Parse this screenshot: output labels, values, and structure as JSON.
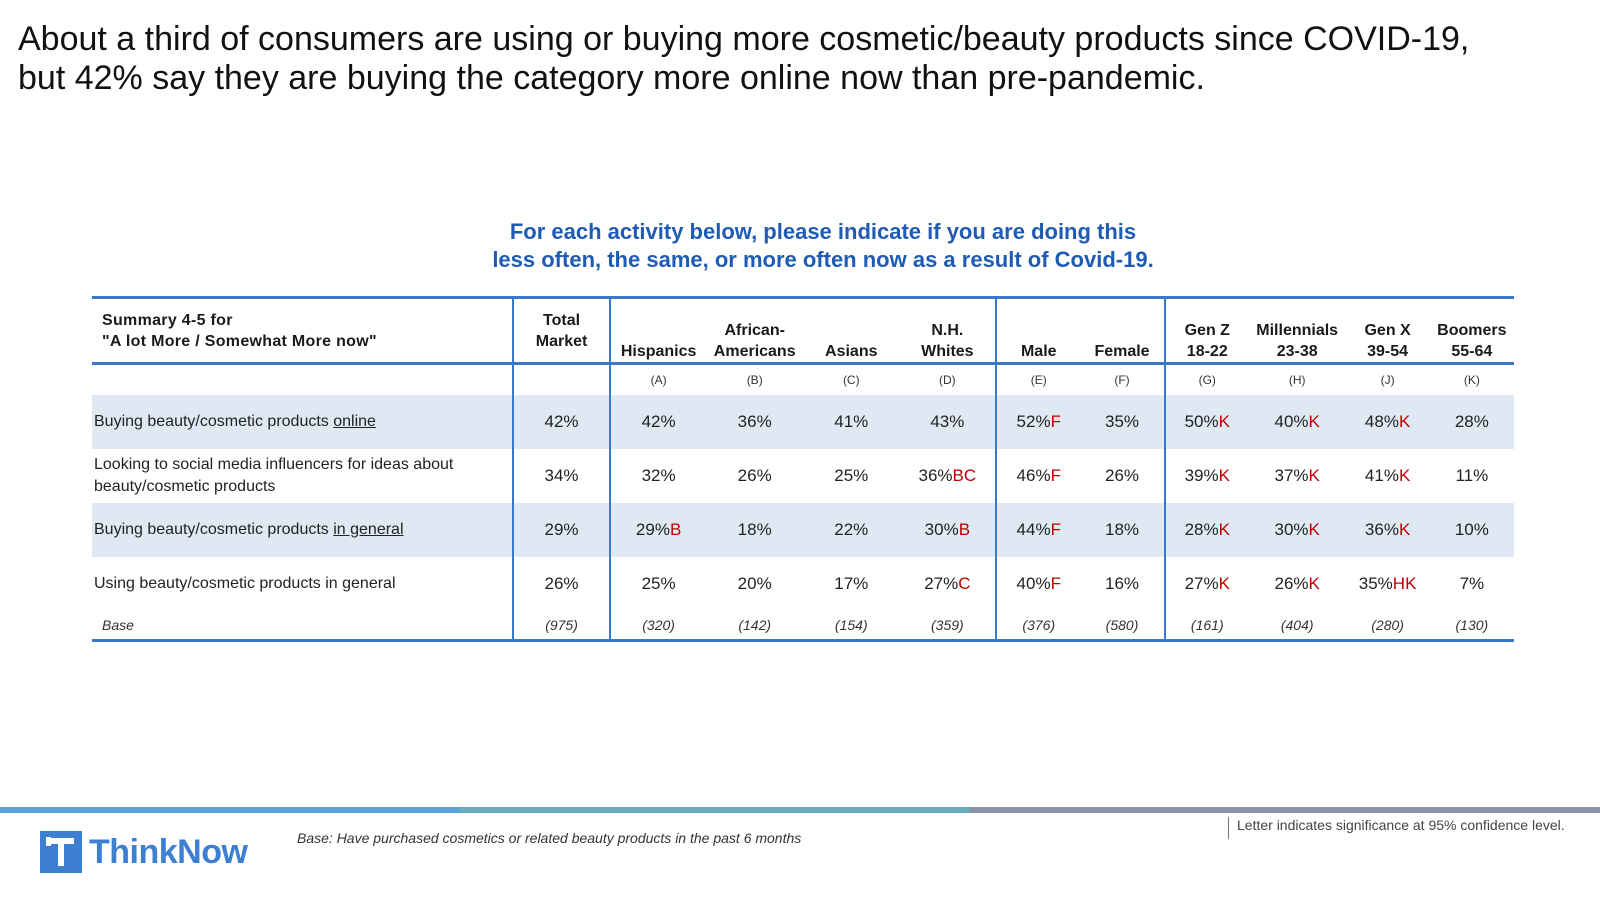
{
  "headline": {
    "line1": "About a third of consumers are using or buying more cosmetic/beauty products since COVID-19,",
    "line2": "but 42% say they are buying the category more online now than pre-pandemic."
  },
  "chart_data": {
    "type": "table",
    "title_line1": "For each activity below, please indicate if you are doing this",
    "title_line2": "less often, the same, or more often now as a result of Covid-19.",
    "row_header": {
      "line1": "Summary 4-5 for",
      "line2": "\"A lot More / Somewhat More now\""
    },
    "columns": [
      {
        "line1": "Total",
        "line2": "Market",
        "letter": ""
      },
      {
        "line1": "",
        "line2": "Hispanics",
        "letter": "(A)"
      },
      {
        "line1": "African-",
        "line2": "Americans",
        "letter": "(B)"
      },
      {
        "line1": "",
        "line2": "Asians",
        "letter": "(C)"
      },
      {
        "line1": "N.H.",
        "line2": "Whites",
        "letter": "(D)"
      },
      {
        "line1": "",
        "line2": "Male",
        "letter": "(E)"
      },
      {
        "line1": "",
        "line2": "Female",
        "letter": "(F)"
      },
      {
        "line1": "Gen Z",
        "line2": "18-22",
        "letter": "(G)"
      },
      {
        "line1": "Millennials",
        "line2": "23-38",
        "letter": "(H)"
      },
      {
        "line1": "Gen X",
        "line2": "39-54",
        "letter": "(J)"
      },
      {
        "line1": "Boomers",
        "line2": "55-64",
        "letter": "(K)"
      }
    ],
    "rows": [
      {
        "label_pre": "Buying beauty/cosmetic products ",
        "label_underline": "online",
        "label_line2": "",
        "values": [
          "42%",
          "42%",
          "36%",
          "41%",
          "43%",
          "52%",
          "35%",
          "50%",
          "40%",
          "48%",
          "28%"
        ],
        "sig": [
          "",
          "",
          "",
          "",
          "",
          "F",
          "",
          "K",
          "K",
          "K",
          ""
        ]
      },
      {
        "label_pre": "Looking to social media influencers for ideas about",
        "label_underline": "",
        "label_line2": "beauty/cosmetic products",
        "values": [
          "34%",
          "32%",
          "26%",
          "25%",
          "36%",
          "46%",
          "26%",
          "39%",
          "37%",
          "41%",
          "11%"
        ],
        "sig": [
          "",
          "",
          "",
          "",
          "BC",
          "F",
          "",
          "K",
          "K",
          "K",
          ""
        ]
      },
      {
        "label_pre": "Buying beauty/cosmetic products ",
        "label_underline": "in general",
        "label_line2": "",
        "values": [
          "29%",
          "29%",
          "18%",
          "22%",
          "30%",
          "44%",
          "18%",
          "28%",
          "30%",
          "36%",
          "10%"
        ],
        "sig": [
          "",
          "B",
          "",
          "",
          "B",
          "F",
          "",
          "K",
          "K",
          "K",
          ""
        ]
      },
      {
        "label_pre": "Using beauty/cosmetic products in general",
        "label_underline": "",
        "label_line2": "",
        "values": [
          "26%",
          "25%",
          "20%",
          "17%",
          "27%",
          "40%",
          "16%",
          "27%",
          "26%",
          "35%",
          "7%"
        ],
        "sig": [
          "",
          "",
          "",
          "",
          "C",
          "F",
          "",
          "K",
          "K",
          "HK",
          ""
        ]
      }
    ],
    "base_label": "Base",
    "base_values": [
      "(975)",
      "(320)",
      "(142)",
      "(154)",
      "(359)",
      "(376)",
      "(580)",
      "(161)",
      "(404)",
      "(280)",
      "(130)"
    ]
  },
  "footer": {
    "logo_text": "ThinkNow",
    "base_note": "Base: Have purchased cosmetics or related beauty products in the past 6 months",
    "sig_note": "Letter indicates significance at 95% confidence level."
  },
  "colors": {
    "accent_blue": "#3a78c9",
    "title_blue": "#1f5bb5",
    "row_shade": "#dfe9f4",
    "significance_red": "#c00000",
    "logo_blue": "#3d7fd1"
  },
  "icons": {
    "logo": "thinknow-t-logo-icon"
  }
}
